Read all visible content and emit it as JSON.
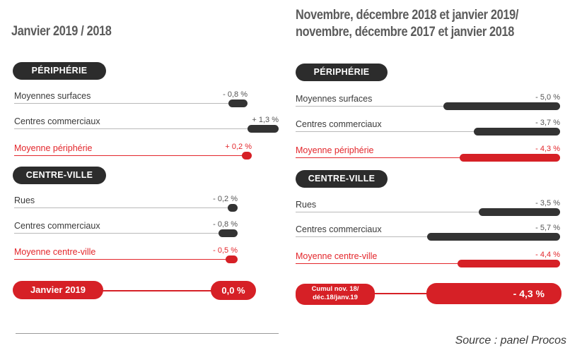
{
  "chart_data": [
    {
      "type": "bar",
      "title": "Janvier 2019 / 2018",
      "sections": [
        {
          "label": "PÉRIPHÉRIE",
          "rows": [
            {
              "label": "Moyennes surfaces",
              "value": -0.8,
              "display": "- 0,8 %"
            },
            {
              "label": "Centres commerciaux",
              "value": 1.3,
              "display": "+ 1,3 %"
            },
            {
              "label": "Moyenne périphérie",
              "value": 0.2,
              "display": "+ 0,2 %",
              "average": true
            }
          ]
        },
        {
          "label": "CENTRE-VILLE",
          "rows": [
            {
              "label": "Rues",
              "value": -0.2,
              "display": "- 0,2 %"
            },
            {
              "label": "Centres commerciaux",
              "value": -0.8,
              "display": "- 0,8 %"
            },
            {
              "label": "Moyenne centre-ville",
              "value": -0.5,
              "display": "- 0,5 %",
              "average": true
            }
          ]
        }
      ],
      "total": {
        "label": "Janvier  2019",
        "display": "0,0 %",
        "value": 0.0
      }
    },
    {
      "type": "bar",
      "title": "Novembre, décembre 2018 et janvier 2019/ novembre, décembre 2017 et janvier 2018",
      "title_lines": [
        "Novembre, décembre 2018 et janvier 2019/",
        "novembre, décembre 2017 et janvier 2018"
      ],
      "sections": [
        {
          "label": "PÉRIPHÉRIE",
          "rows": [
            {
              "label": "Moyennes surfaces",
              "value": -5.0,
              "display": "- 5,0 %"
            },
            {
              "label": "Centres commerciaux",
              "value": -3.7,
              "display": "- 3,7 %"
            },
            {
              "label": "Moyenne périphérie",
              "value": -4.3,
              "display": "- 4,3 %",
              "average": true
            }
          ]
        },
        {
          "label": "CENTRE-VILLE",
          "rows": [
            {
              "label": "Rues",
              "value": -3.5,
              "display": "- 3,5 %"
            },
            {
              "label": "Centres commerciaux",
              "value": -5.7,
              "display": "- 5,7 %"
            },
            {
              "label": "Moyenne centre-ville",
              "value": -4.4,
              "display": "- 4,4 %",
              "average": true
            }
          ]
        }
      ],
      "total": {
        "label_lines": [
          "Cumul nov. 18/",
          "déc.18/janv.19"
        ],
        "display": "- 4,3 %",
        "value": -4.3
      }
    }
  ],
  "colors": {
    "dark": "#333333",
    "accent": "#d62026",
    "title": "#5b5b5b"
  },
  "footer": {
    "source": "Source : panel Procos"
  }
}
